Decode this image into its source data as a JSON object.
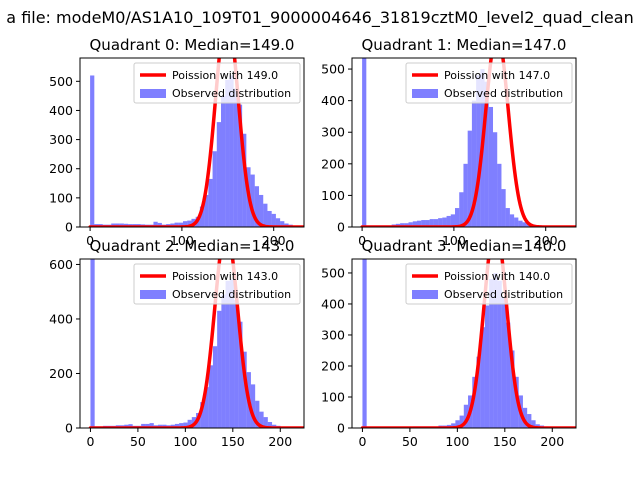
{
  "figure": {
    "suptitle": "a file: modeM0/AS1A10_109T01_9000004646_31819cztM0_level2_quad_clean"
  },
  "colors": {
    "hist": "#0000ff",
    "hist_alpha": 0.5,
    "fit": "#ff0000",
    "axis": "#000000",
    "background": "#ffffff"
  },
  "chart_data": [
    {
      "type": "bar",
      "title": "Quadrant 0: Median=149.0",
      "median": 149.0,
      "legend": [
        "Poission with 149.0",
        "Observed distribution"
      ],
      "legend_position": "top-right",
      "xlim": [
        -11,
        233
      ],
      "ylim": [
        0,
        580
      ],
      "xticks": [
        0,
        100,
        200
      ],
      "yticks": [
        0,
        100,
        200,
        300,
        400,
        500
      ],
      "bin_start": 0,
      "bin_width": 4.6,
      "values": [
        520,
        10,
        10,
        8,
        8,
        12,
        12,
        12,
        11,
        10,
        10,
        10,
        9,
        8,
        8,
        18,
        14,
        8,
        10,
        12,
        15,
        15,
        20,
        22,
        28,
        35,
        70,
        110,
        165,
        260,
        360,
        450,
        505,
        520,
        475,
        420,
        320,
        205,
        180,
        140,
        110,
        80,
        55,
        45,
        30,
        20,
        12,
        8,
        5,
        4
      ]
    },
    {
      "type": "bar",
      "title": "Quadrant 1: Median=147.0",
      "median": 147.0,
      "legend": [
        "Poission with 147.0",
        "Observed distribution"
      ],
      "legend_position": "top-right",
      "xlim": [
        -11,
        233
      ],
      "ylim": [
        0,
        535
      ],
      "xticks": [
        0,
        100,
        200
      ],
      "yticks": [
        0,
        100,
        200,
        300,
        400,
        500
      ],
      "bin_start": 0,
      "bin_width": 4.6,
      "values": [
        535,
        5,
        5,
        5,
        5,
        5,
        5,
        8,
        10,
        12,
        12,
        15,
        18,
        20,
        22,
        22,
        25,
        25,
        28,
        30,
        35,
        40,
        60,
        110,
        200,
        305,
        400,
        480,
        500,
        460,
        380,
        300,
        200,
        120,
        60,
        40,
        30,
        20,
        15,
        10,
        8,
        6,
        5,
        3
      ]
    },
    {
      "type": "bar",
      "title": "Quadrant 2: Median=143.0",
      "median": 143.0,
      "legend": [
        "Poission with 143.0",
        "Observed distribution"
      ],
      "legend_position": "top-right",
      "xlim": [
        -11,
        225
      ],
      "ylim": [
        0,
        620
      ],
      "xticks": [
        0,
        50,
        100,
        150,
        200
      ],
      "yticks": [
        0,
        200,
        400,
        600
      ],
      "bin_start": 0,
      "bin_width": 4.45,
      "values": [
        620,
        6,
        6,
        8,
        8,
        8,
        10,
        10,
        12,
        14,
        8,
        8,
        15,
        15,
        18,
        10,
        12,
        12,
        10,
        12,
        15,
        18,
        20,
        30,
        40,
        55,
        95,
        150,
        230,
        300,
        430,
        490,
        540,
        545,
        470,
        390,
        280,
        205,
        160,
        100,
        60,
        40,
        22,
        12,
        8,
        5,
        3
      ]
    },
    {
      "type": "bar",
      "title": "Quadrant 3: Median=140.0",
      "median": 140.0,
      "legend": [
        "Poission with 140.0",
        "Observed distribution"
      ],
      "legend_position": "top-right",
      "xlim": [
        -11,
        225
      ],
      "ylim": [
        0,
        545
      ],
      "xticks": [
        0,
        50,
        100,
        150,
        200
      ],
      "yticks": [
        0,
        100,
        200,
        300,
        400,
        500
      ],
      "bin_start": 0,
      "bin_width": 4.45,
      "values": [
        545,
        2,
        2,
        2,
        2,
        2,
        2,
        3,
        3,
        3,
        3,
        3,
        5,
        5,
        5,
        5,
        5,
        5,
        8,
        8,
        10,
        15,
        25,
        40,
        75,
        105,
        165,
        230,
        325,
        395,
        480,
        500,
        475,
        420,
        340,
        250,
        165,
        105,
        65,
        45,
        25,
        12,
        8,
        5,
        3,
        2
      ]
    }
  ]
}
